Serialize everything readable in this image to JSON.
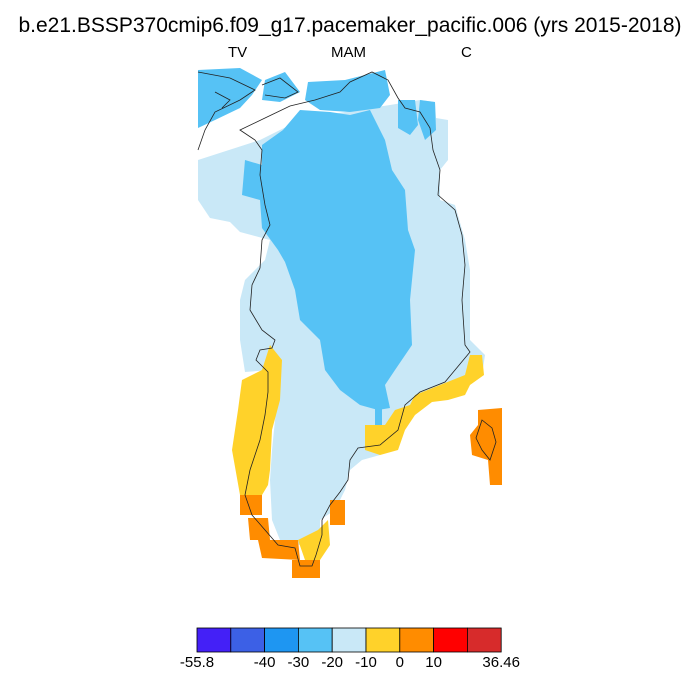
{
  "title": "b.e21.BSSP370cmip6.f09_g17.pacemaker_pacific.006 (yrs 2015-2018)",
  "subtitles": {
    "left": "TV",
    "center": "MAM",
    "right": "C"
  },
  "map": {
    "region": "Greenland",
    "fields": [
      {
        "name": "-30 to -20",
        "color": "#56c2f5"
      },
      {
        "name": "-20 to -10",
        "color": "#c9e8f7"
      },
      {
        "name": "-10 to 0",
        "color": "#ffd22a"
      },
      {
        "name": "0 to 10",
        "color": "#ff8c00"
      }
    ]
  },
  "colorbar": {
    "colors": [
      "#4420f7",
      "#3c60e6",
      "#1e96f2",
      "#56c2f5",
      "#c9e8f7",
      "#ffd22a",
      "#ff8c00",
      "#ff0000",
      "#d72b2b"
    ],
    "labels": [
      "-55.8",
      "-40",
      "-30",
      "-20",
      "-10",
      "0",
      "10",
      "36.46"
    ]
  }
}
